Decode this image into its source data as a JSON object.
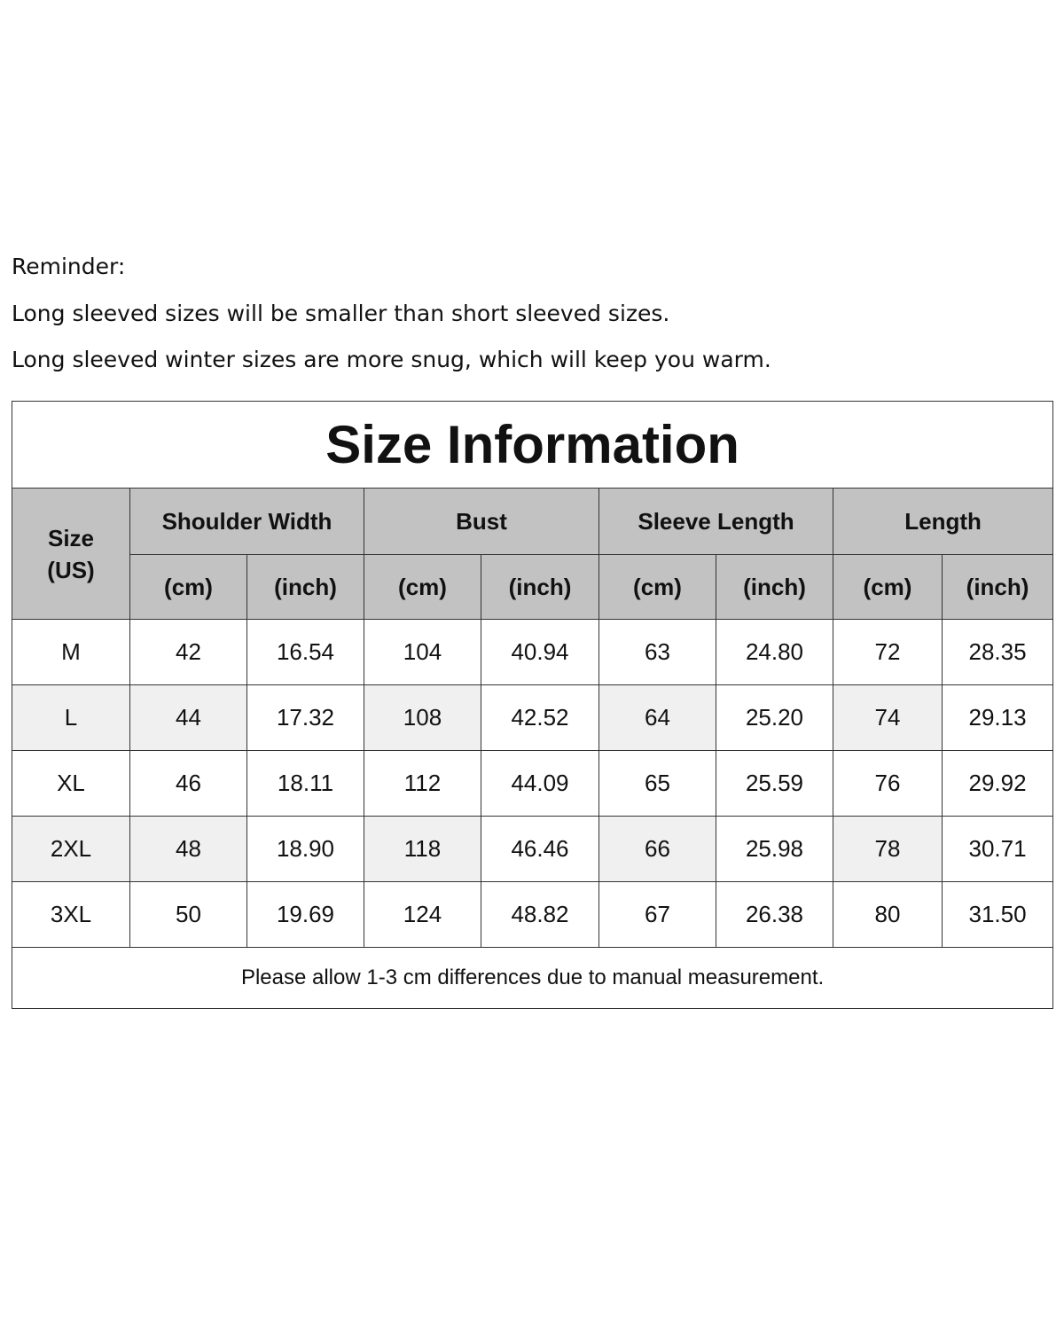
{
  "reminder": [
    "Reminder:",
    "Long sleeved sizes will be smaller than short sleeved sizes.",
    "Long sleeved winter sizes are more snug, which will keep you warm."
  ],
  "title": "Size Information",
  "size_header": "Size\n(US)",
  "groups": [
    "Shoulder Width",
    "Bust",
    "Sleeve Length",
    "Length"
  ],
  "units": [
    "(cm)",
    "(inch)",
    "(cm)",
    "(inch)",
    "(cm)",
    "(inch)",
    "(cm)",
    "(inch)"
  ],
  "rows": [
    [
      "M",
      "42",
      "16.54",
      "104",
      "40.94",
      "63",
      "24.80",
      "72",
      "28.35"
    ],
    [
      "L",
      "44",
      "17.32",
      "108",
      "42.52",
      "64",
      "25.20",
      "74",
      "29.13"
    ],
    [
      "XL",
      "46",
      "18.11",
      "112",
      "44.09",
      "65",
      "25.59",
      "76",
      "29.92"
    ],
    [
      "2XL",
      "48",
      "18.90",
      "118",
      "46.46",
      "66",
      "25.98",
      "78",
      "30.71"
    ],
    [
      "3XL",
      "50",
      "19.69",
      "124",
      "48.82",
      "67",
      "26.38",
      "80",
      "31.50"
    ]
  ],
  "footer": "Please allow 1-3 cm differences due to manual measurement.",
  "colors": {
    "header_bg": "#c2c2c2",
    "alt_cell_bg": "#f0f0f0"
  }
}
